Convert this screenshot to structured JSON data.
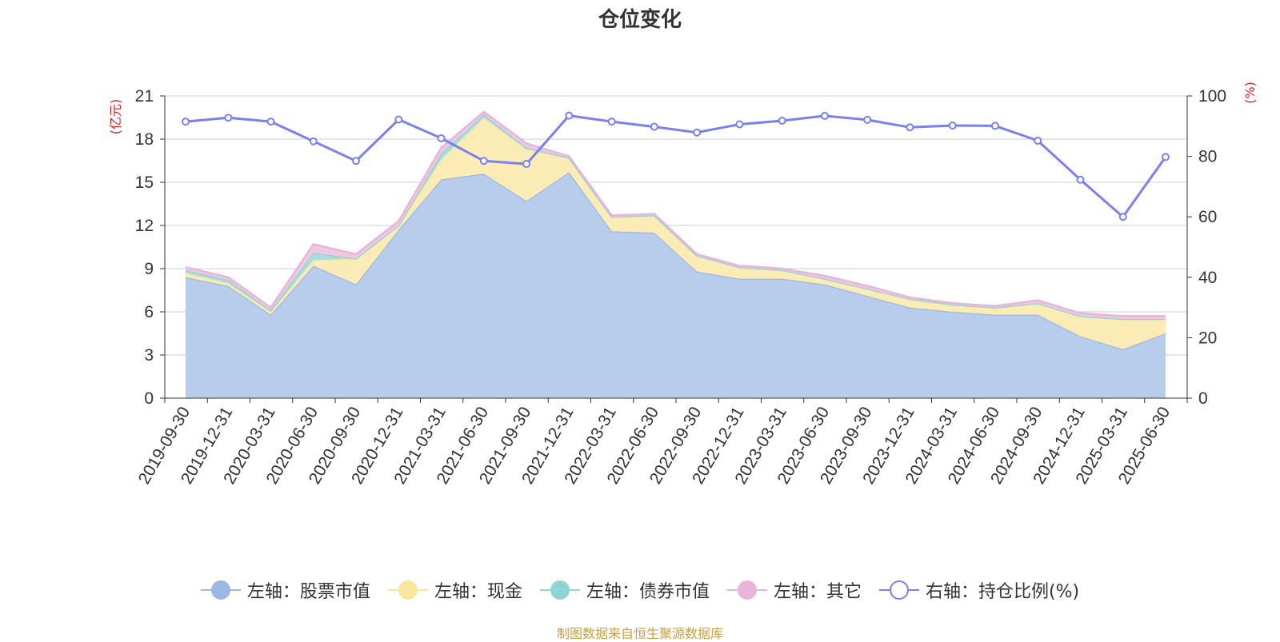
{
  "chart_data": {
    "type": "area",
    "title": "仓位变化",
    "x": [
      "2019-09-30",
      "2019-12-31",
      "2020-03-31",
      "2020-06-30",
      "2020-09-30",
      "2020-12-31",
      "2021-03-31",
      "2021-06-30",
      "2021-09-30",
      "2021-12-31",
      "2022-03-31",
      "2022-06-30",
      "2022-09-30",
      "2022-12-31",
      "2023-03-31",
      "2023-06-30",
      "2023-09-30",
      "2023-12-31",
      "2024-03-31",
      "2024-06-30",
      "2024-09-30",
      "2024-12-31",
      "2025-03-31",
      "2025-06-30"
    ],
    "left_axis": {
      "label": "(亿元)",
      "min": 0,
      "max": 21,
      "ticks": [
        "0",
        "3",
        "6",
        "9",
        "12",
        "15",
        "18",
        "21"
      ]
    },
    "right_axis": {
      "label": "(%)",
      "min": 0,
      "max": 100,
      "ticks": [
        "0",
        "20",
        "40",
        "60",
        "80",
        "100"
      ]
    },
    "stacked": true,
    "series": [
      {
        "name": "左轴：股票市值",
        "axis": "left",
        "type": "area",
        "color": "#9bb8e3",
        "fill": "#b8cdeb",
        "values": [
          8.4,
          7.8,
          5.8,
          9.2,
          7.9,
          11.7,
          15.2,
          15.6,
          13.7,
          15.7,
          11.6,
          11.5,
          8.8,
          8.3,
          8.3,
          7.9,
          7.1,
          6.3,
          6.0,
          5.8,
          5.8,
          4.3,
          3.4,
          4.5
        ]
      },
      {
        "name": "左轴：现金",
        "axis": "left",
        "type": "area",
        "color": "#f9e59b",
        "fill": "#fbecb6",
        "values": [
          0.3,
          0.2,
          0.2,
          0.4,
          1.8,
          0.3,
          1.4,
          3.9,
          3.6,
          1.0,
          1.0,
          1.2,
          1.1,
          0.8,
          0.6,
          0.4,
          0.5,
          0.6,
          0.5,
          0.5,
          0.8,
          1.4,
          2.1,
          1.0
        ]
      },
      {
        "name": "左轴：债券市值",
        "axis": "left",
        "type": "area",
        "color": "#8ed4d4",
        "fill": "#a8dddd",
        "values": [
          0.2,
          0.2,
          0.1,
          0.5,
          0.0,
          0.0,
          0.4,
          0.2,
          0.1,
          0.0,
          0.0,
          0.0,
          0.0,
          0.0,
          0.0,
          0.0,
          0.0,
          0.0,
          0.0,
          0.0,
          0.0,
          0.0,
          0.0,
          0.0
        ]
      },
      {
        "name": "左轴：其它",
        "axis": "left",
        "type": "area",
        "color": "#e8b4d9",
        "fill": "#efc9e4",
        "values": [
          0.2,
          0.2,
          0.2,
          0.6,
          0.3,
          0.3,
          0.4,
          0.2,
          0.3,
          0.1,
          0.1,
          0.1,
          0.1,
          0.1,
          0.1,
          0.2,
          0.2,
          0.1,
          0.1,
          0.1,
          0.2,
          0.2,
          0.2,
          0.2
        ]
      },
      {
        "name": "右轴：持仓比例(%)",
        "axis": "right",
        "type": "line",
        "color": "#7b7ff0",
        "values": [
          91.5,
          92.8,
          91.5,
          85.0,
          78.5,
          92.2,
          86.0,
          78.5,
          77.5,
          93.5,
          91.5,
          89.8,
          87.9,
          90.6,
          91.8,
          93.4,
          92.1,
          89.6,
          90.2,
          90.1,
          85.2,
          72.3,
          60.0,
          79.8
        ]
      }
    ],
    "grid": true,
    "legend_position": "bottom"
  },
  "source_text": "制图数据来自恒生聚源数据库"
}
